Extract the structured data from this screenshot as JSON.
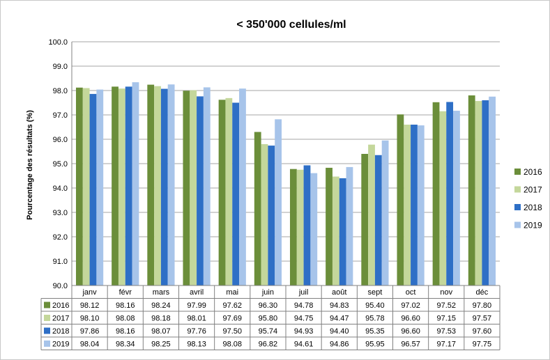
{
  "chart_data": {
    "type": "bar",
    "title": "< 350'000 cellules/ml",
    "xlabel": "",
    "ylabel": "Pourcentage des résultats (%)",
    "ylim": [
      90.0,
      100.0
    ],
    "yticks": [
      "90.0",
      "91.0",
      "92.0",
      "93.0",
      "94.0",
      "95.0",
      "96.0",
      "97.0",
      "98.0",
      "99.0",
      "100.0"
    ],
    "grid": true,
    "legend": "right",
    "categories": [
      "janv",
      "févr",
      "mars",
      "avril",
      "mai",
      "juin",
      "juil",
      "août",
      "sept",
      "oct",
      "nov",
      "déc"
    ],
    "series": [
      {
        "name": "2016",
        "color": "#6B8E3A",
        "values": [
          98.12,
          98.16,
          98.24,
          97.99,
          97.62,
          96.3,
          94.78,
          94.83,
          95.4,
          97.02,
          97.52,
          97.8
        ],
        "labels": [
          "98.12",
          "98.16",
          "98.24",
          "97.99",
          "97.62",
          "96.30",
          "94.78",
          "94.83",
          "95.40",
          "97.02",
          "97.52",
          "97.80"
        ]
      },
      {
        "name": "2017",
        "color": "#C4D79B",
        "values": [
          98.1,
          98.08,
          98.18,
          98.01,
          97.69,
          95.8,
          94.75,
          94.47,
          95.78,
          96.6,
          97.15,
          97.57
        ],
        "labels": [
          "98.10",
          "98.08",
          "98.18",
          "98.01",
          "97.69",
          "95.80",
          "94.75",
          "94.47",
          "95.78",
          "96.60",
          "97.15",
          "97.57"
        ]
      },
      {
        "name": "2018",
        "color": "#2E6FC6",
        "values": [
          97.86,
          98.16,
          98.07,
          97.76,
          97.5,
          95.74,
          94.93,
          94.4,
          95.35,
          96.6,
          97.53,
          97.6
        ],
        "labels": [
          "97.86",
          "98.16",
          "98.07",
          "97.76",
          "97.50",
          "95.74",
          "94.93",
          "94.40",
          "95.35",
          "96.60",
          "97.53",
          "97.60"
        ]
      },
      {
        "name": "2019",
        "color": "#A7C4EA",
        "values": [
          98.04,
          98.34,
          98.25,
          98.13,
          98.08,
          96.82,
          94.61,
          94.86,
          95.95,
          96.57,
          97.17,
          97.75
        ],
        "labels": [
          "98.04",
          "98.34",
          "98.25",
          "98.13",
          "98.08",
          "96.82",
          "94.61",
          "94.86",
          "95.95",
          "96.57",
          "97.17",
          "97.75"
        ]
      }
    ]
  }
}
